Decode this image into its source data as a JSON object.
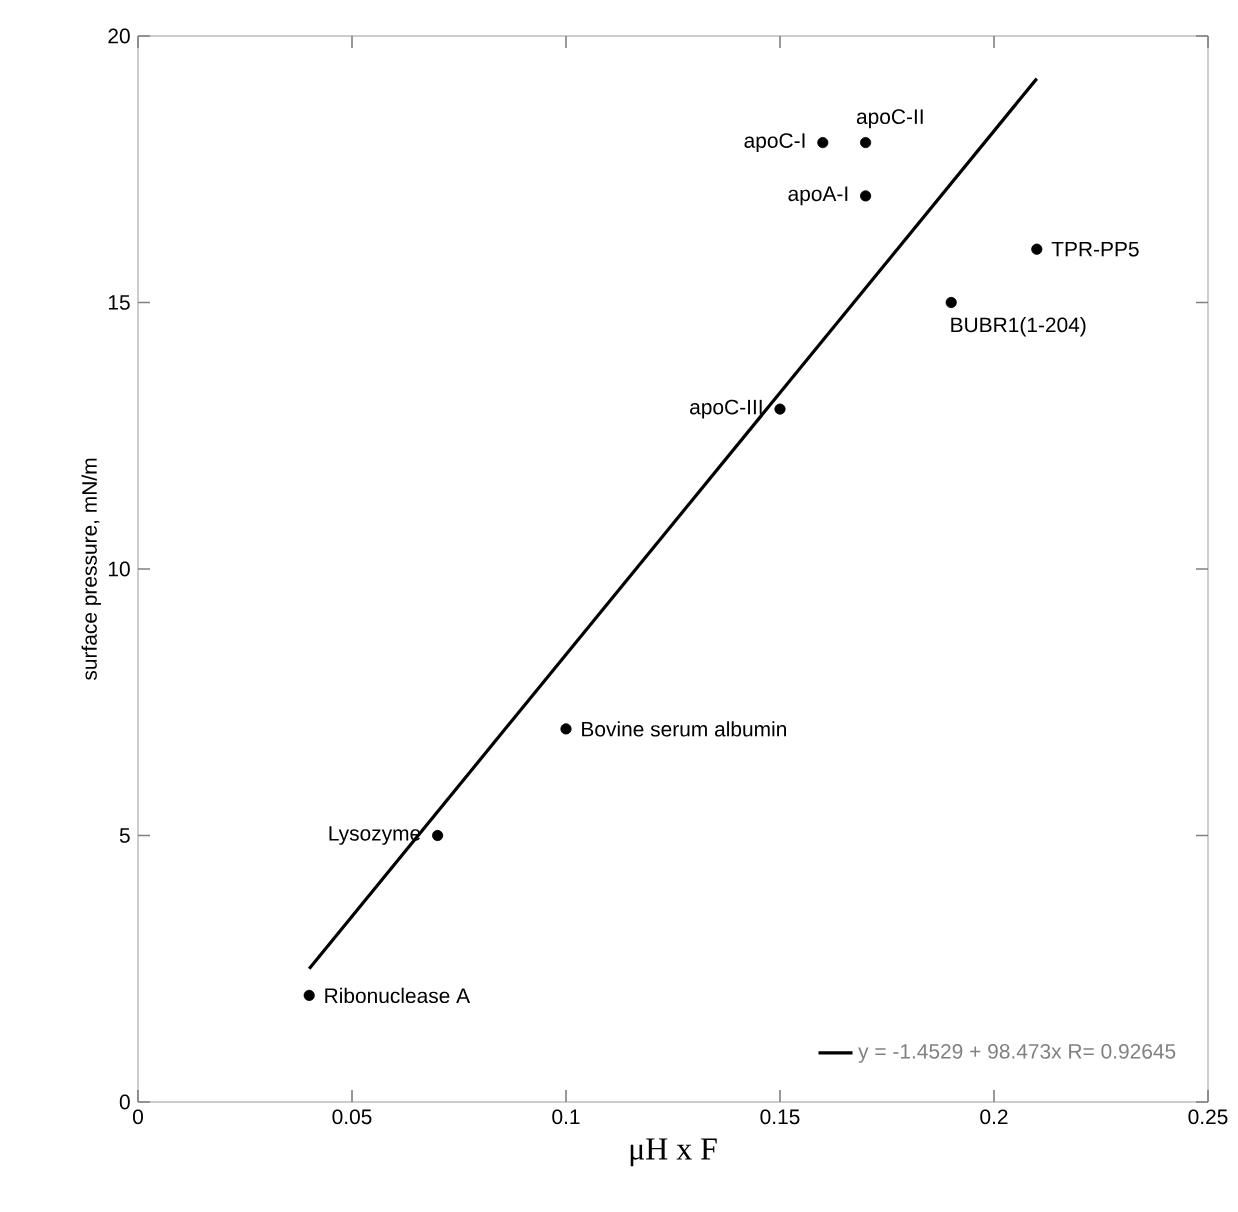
{
  "chart_data": {
    "type": "scatter",
    "xlabel": "μH x F",
    "ylabel": "surface pressure, mN/m",
    "series": [
      {
        "marker": "circle",
        "color": "#000000",
        "x": [
          0.04,
          0.07,
          0.1,
          0.15,
          0.16,
          0.17,
          0.17,
          0.19,
          0.21
        ],
        "values": [
          2,
          5,
          7,
          13,
          18,
          18,
          17,
          15,
          16
        ]
      },
      {
        "type": "line",
        "marker": "none",
        "name": "y = -1.4529 + 98.473x   R= 0.92645",
        "color": "#000000",
        "x": [
          0.04,
          0.21
        ],
        "values": [
          2.5,
          19.2
        ]
      }
    ],
    "annotations": [
      {
        "text": "Ribonuclease A",
        "x": 0.04,
        "y": 2
      },
      {
        "text": "Lysozyme",
        "x": 0.07,
        "y": 5
      },
      {
        "text": "Bovine serum albumin",
        "x": 0.1,
        "y": 7
      },
      {
        "text": "apoC-III",
        "x": 0.15,
        "y": 13
      },
      {
        "text": "apoC-I",
        "x": 0.16,
        "y": 18
      },
      {
        "text": "apoC-II",
        "x": 0.17,
        "y": 18
      },
      {
        "text": "apoA-I",
        "x": 0.17,
        "y": 17
      },
      {
        "text": "BUBR1(1-204)",
        "x": 0.19,
        "y": 15
      },
      {
        "text": "TPR-PP5",
        "x": 0.21,
        "y": 16
      }
    ],
    "xlim": [
      0,
      0.25
    ],
    "ylim": [
      0,
      20
    ],
    "xticks": [
      0,
      0.05,
      0.1,
      0.15,
      0.2,
      0.25
    ],
    "yticks": [
      0,
      5,
      10,
      15,
      20
    ],
    "grid": false,
    "legend": "bottom right",
    "line_style": "solid"
  }
}
